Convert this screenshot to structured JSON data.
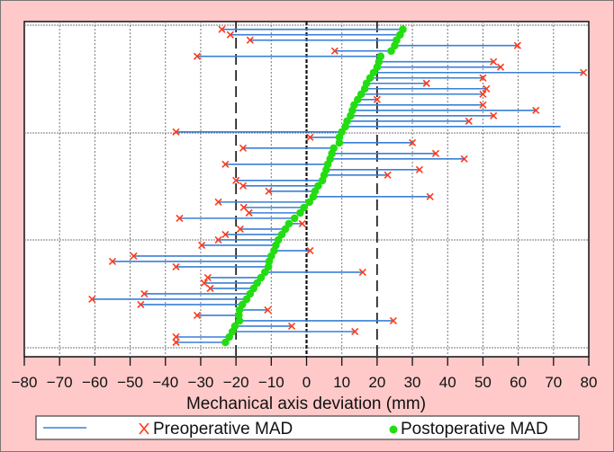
{
  "chart_data": {
    "type": "scatter",
    "title": "",
    "xlabel": "Mechanical axis deviation (mm)",
    "ylabel": "",
    "xlim": [
      -80,
      80
    ],
    "xticks": [
      "−80",
      "−70",
      "−60",
      "−50",
      "−40",
      "−30",
      "−20",
      "−10",
      "0",
      "10",
      "20",
      "30",
      "40",
      "50",
      "60",
      "70",
      "80"
    ],
    "xtick_values": [
      -80,
      -70,
      -60,
      -50,
      -40,
      -30,
      -20,
      -10,
      0,
      10,
      20,
      30,
      40,
      50,
      60,
      70,
      80
    ],
    "reference_lines": [
      -20,
      0,
      20
    ],
    "grid": true,
    "legend": {
      "placement": "bottom",
      "entries": [
        "Preoperative MAD",
        "Postoperative MAD"
      ]
    },
    "colors": {
      "line": "#3a7fd5",
      "pre": "#ff3a1a",
      "post": "#22dd11",
      "background": "#ffc9c9"
    },
    "series": [
      {
        "name": "Preoperative MAD",
        "marker": "x",
        "values": [
          -24,
          -21.6,
          -16,
          59.8,
          8,
          -31,
          53,
          55,
          78.5,
          50,
          34,
          51,
          50,
          20,
          50,
          65,
          53,
          46,
          72,
          -37,
          1,
          30,
          -18,
          36.6,
          44.7,
          -23,
          32,
          23,
          -20,
          -18,
          -10.7,
          35,
          -25,
          -17.8,
          -16.3,
          -36,
          -1.2,
          -18.8,
          -23,
          -25,
          -29.7,
          1,
          -49,
          -55,
          -37,
          15.9,
          -28,
          -29,
          -27.3,
          -46,
          -60.8,
          -47,
          -11,
          -31,
          24.6,
          -4.2,
          13.7,
          -37,
          -37
        ]
      },
      {
        "name": "Postoperative MAD",
        "marker": "o",
        "values": [
          27.3,
          26.5,
          25.5,
          25,
          24,
          21,
          20.5,
          20,
          19,
          18,
          17,
          16.5,
          15.5,
          14.5,
          13.5,
          13,
          12.5,
          11.5,
          11,
          10,
          9.3,
          9.3,
          7.7,
          7.2,
          6.7,
          6,
          5.6,
          5,
          4.5,
          3.3,
          2.4,
          1.9,
          0.8,
          -0.7,
          -1.8,
          -3.4,
          -5,
          -6,
          -7,
          -8,
          -8.7,
          -9.2,
          -10,
          -10.6,
          -10.8,
          -11.8,
          -12.9,
          -14,
          -15,
          -16,
          -17,
          -18.2,
          -19,
          -19.2,
          -19,
          -20.3,
          -21,
          -21.9,
          -23
        ]
      }
    ]
  }
}
